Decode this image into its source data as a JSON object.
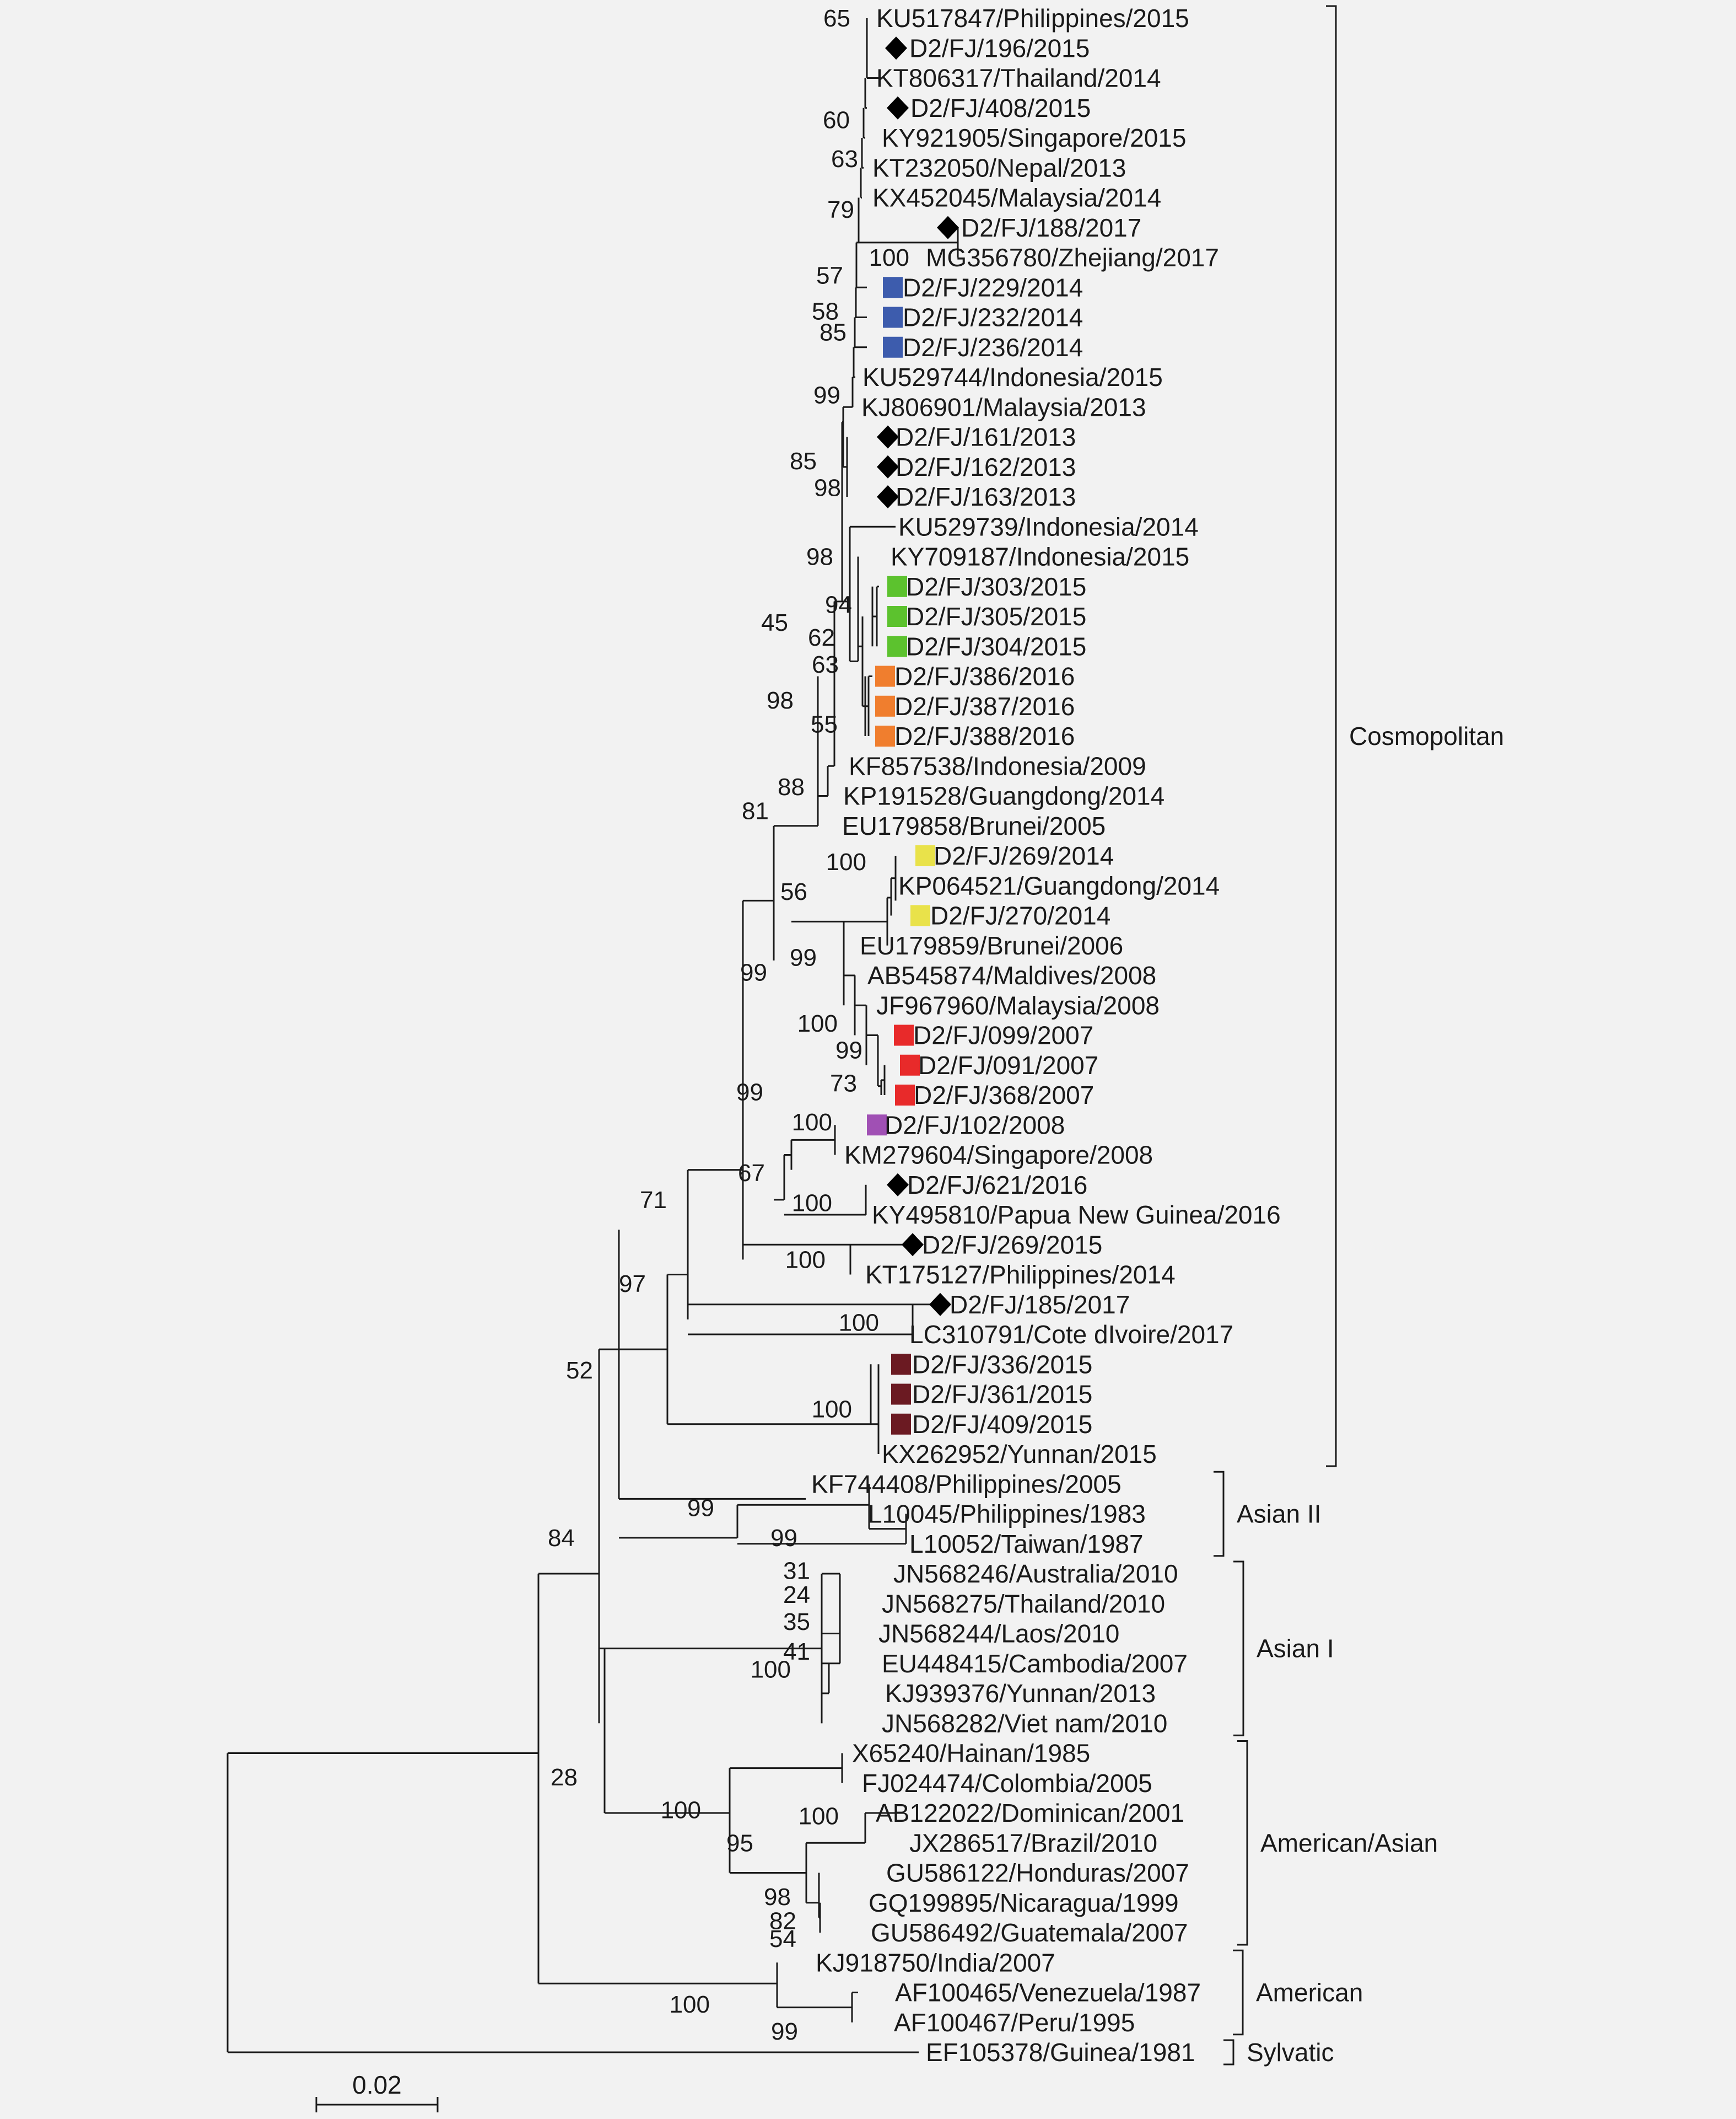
{
  "leaves": [
    {
      "label": "KU517847/Philippines/2015",
      "marker": "none"
    },
    {
      "label": "D2/FJ/196/2015",
      "marker": "diamond"
    },
    {
      "label": "KT806317/Thailand/2014",
      "marker": "none"
    },
    {
      "label": "D2/FJ/408/2015",
      "marker": "diamond"
    },
    {
      "label": "KY921905/Singapore/2015",
      "marker": "none"
    },
    {
      "label": "KT232050/Nepal/2013",
      "marker": "none"
    },
    {
      "label": "KX452045/Malaysia/2014",
      "marker": "none"
    },
    {
      "label": "D2/FJ/188/2017",
      "marker": "diamond"
    },
    {
      "label": "MG356780/Zhejiang/2017",
      "marker": "none"
    },
    {
      "label": "D2/FJ/229/2014",
      "marker": "square",
      "color": "#3d5cad"
    },
    {
      "label": "D2/FJ/232/2014",
      "marker": "square",
      "color": "#3d5cad"
    },
    {
      "label": "D2/FJ/236/2014",
      "marker": "square",
      "color": "#3d5cad"
    },
    {
      "label": "KU529744/Indonesia/2015",
      "marker": "none"
    },
    {
      "label": "KJ806901/Malaysia/2013",
      "marker": "none"
    },
    {
      "label": "D2/FJ/161/2013",
      "marker": "diamond"
    },
    {
      "label": "D2/FJ/162/2013",
      "marker": "diamond"
    },
    {
      "label": "D2/FJ/163/2013",
      "marker": "diamond"
    },
    {
      "label": "KU529739/Indonesia/2014",
      "marker": "none"
    },
    {
      "label": "KY709187/Indonesia/2015",
      "marker": "none"
    },
    {
      "label": "D2/FJ/303/2015",
      "marker": "square",
      "color": "#5cc22e"
    },
    {
      "label": "D2/FJ/305/2015",
      "marker": "square",
      "color": "#5cc22e"
    },
    {
      "label": "D2/FJ/304/2015",
      "marker": "square",
      "color": "#5cc22e"
    },
    {
      "label": "D2/FJ/386/2016",
      "marker": "square",
      "color": "#f07e2e"
    },
    {
      "label": "D2/FJ/387/2016",
      "marker": "square",
      "color": "#f07e2e"
    },
    {
      "label": "D2/FJ/388/2016",
      "marker": "square",
      "color": "#f07e2e"
    },
    {
      "label": "KF857538/Indonesia/2009",
      "marker": "none"
    },
    {
      "label": "KP191528/Guangdong/2014",
      "marker": "none"
    },
    {
      "label": "EU179858/Brunei/2005",
      "marker": "none"
    },
    {
      "label": "D2/FJ/269/2014",
      "marker": "square",
      "color": "#e9e24a"
    },
    {
      "label": "KP064521/Guangdong/2014",
      "marker": "none"
    },
    {
      "label": "D2/FJ/270/2014",
      "marker": "square",
      "color": "#e9e24a"
    },
    {
      "label": "EU179859/Brunei/2006",
      "marker": "none"
    },
    {
      "label": "AB545874/Maldives/2008",
      "marker": "none"
    },
    {
      "label": "JF967960/Malaysia/2008",
      "marker": "none"
    },
    {
      "label": "D2/FJ/099/2007",
      "marker": "square",
      "color": "#e82a2a"
    },
    {
      "label": "D2/FJ/091/2007",
      "marker": "square",
      "color": "#e82a2a"
    },
    {
      "label": "D2/FJ/368/2007",
      "marker": "square",
      "color": "#e82a2a"
    },
    {
      "label": "D2/FJ/102/2008",
      "marker": "square",
      "color": "#a050b4"
    },
    {
      "label": "KM279604/Singapore/2008",
      "marker": "none"
    },
    {
      "label": "D2/FJ/621/2016",
      "marker": "diamond"
    },
    {
      "label": "KY495810/Papua New Guinea/2016",
      "marker": "none"
    },
    {
      "label": "D2/FJ/269/2015",
      "marker": "diamond"
    },
    {
      "label": "KT175127/Philippines/2014",
      "marker": "none"
    },
    {
      "label": "D2/FJ/185/2017",
      "marker": "diamond"
    },
    {
      "label": "LC310791/Cote dIvoire/2017",
      "marker": "none"
    },
    {
      "label": "D2/FJ/336/2015",
      "marker": "square",
      "color": "#6b1a22"
    },
    {
      "label": "D2/FJ/361/2015",
      "marker": "square",
      "color": "#6b1a22"
    },
    {
      "label": "D2/FJ/409/2015",
      "marker": "square",
      "color": "#6b1a22"
    },
    {
      "label": "KX262952/Yunnan/2015",
      "marker": "none"
    },
    {
      "label": "KF744408/Philippines/2005",
      "marker": "none"
    },
    {
      "label": "L10045/Philippines/1983",
      "marker": "none"
    },
    {
      "label": "L10052/Taiwan/1987",
      "marker": "none"
    },
    {
      "label": "JN568246/Australia/2010",
      "marker": "none"
    },
    {
      "label": "JN568275/Thailand/2010",
      "marker": "none"
    },
    {
      "label": "JN568244/Laos/2010",
      "marker": "none"
    },
    {
      "label": "EU448415/Cambodia/2007",
      "marker": "none"
    },
    {
      "label": "KJ939376/Yunnan/2013",
      "marker": "none"
    },
    {
      "label": "JN568282/Viet nam/2010",
      "marker": "none"
    },
    {
      "label": "X65240/Hainan/1985",
      "marker": "none"
    },
    {
      "label": "FJ024474/Colombia/2005",
      "marker": "none"
    },
    {
      "label": "AB122022/Dominican/2001",
      "marker": "none"
    },
    {
      "label": "JX286517/Brazil/2010",
      "marker": "none"
    },
    {
      "label": "GU586122/Honduras/2007",
      "marker": "none"
    },
    {
      "label": "GQ199895/Nicaragua/1999",
      "marker": "none"
    },
    {
      "label": "GU586492/Guatemala/2007",
      "marker": "none"
    },
    {
      "label": "KJ918750/India/2007",
      "marker": "none"
    },
    {
      "label": "AF100465/Venezuela/1987",
      "marker": "none"
    },
    {
      "label": "AF100467/Peru/1995",
      "marker": "none"
    },
    {
      "label": "EF105378/Guinea/1981",
      "marker": "none"
    }
  ],
  "bootstrap_values": [
    "65",
    "60",
    "63",
    "79",
    "100",
    "57",
    "58",
    "85",
    "99",
    "85",
    "98",
    "98",
    "94",
    "62",
    "45",
    "63",
    "55",
    "98",
    "88",
    "81",
    "100",
    "56",
    "99",
    "99",
    "100",
    "99",
    "73",
    "99",
    "100",
    "67",
    "100",
    "71",
    "100",
    "97",
    "100",
    "52",
    "100",
    "99",
    "99",
    "84",
    "31",
    "24",
    "35",
    "41",
    "100",
    "28",
    "100",
    "100",
    "95",
    "98",
    "82",
    "54",
    "100",
    "99"
  ],
  "clades": [
    {
      "name": "Cosmopolitan",
      "first_leaf": 0,
      "last_leaf": 48
    },
    {
      "name": "Asian II",
      "first_leaf": 49,
      "last_leaf": 51
    },
    {
      "name": "Asian I",
      "first_leaf": 52,
      "last_leaf": 57
    },
    {
      "name": "American/Asian",
      "first_leaf": 58,
      "last_leaf": 64
    },
    {
      "name": "American",
      "first_leaf": 65,
      "last_leaf": 67
    },
    {
      "name": "Sylvatic",
      "first_leaf": 68,
      "last_leaf": 68
    }
  ],
  "scale_bar": {
    "label": "0.02"
  },
  "colors": {
    "line": "#1a1a1a",
    "background": "#f2f2f2"
  }
}
